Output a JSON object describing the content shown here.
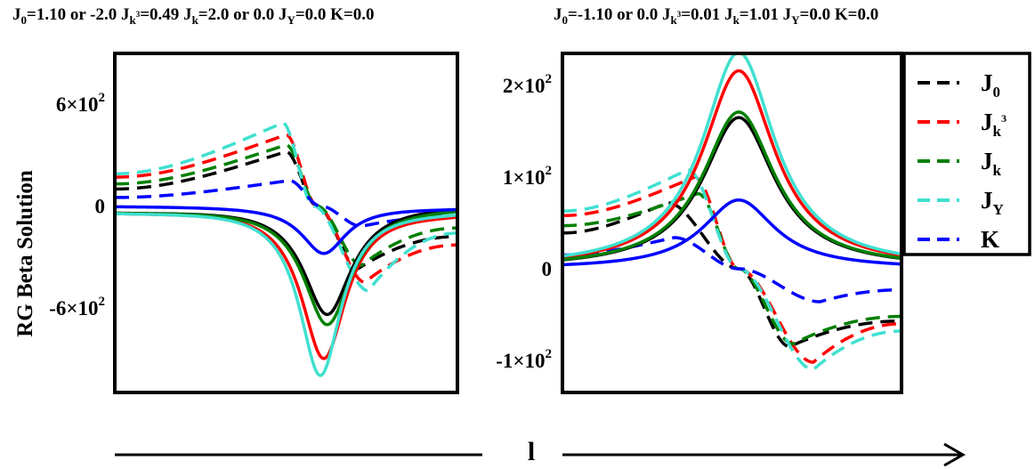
{
  "chart_data": [
    {
      "type": "line",
      "title": "J_0=1.10 or -2.0 J_k³=0.49 J_k=2.0 or 0.0 J_Y=0.0 K=0.0",
      "title_parts": {
        "j0": "J",
        "j0_sub": "0",
        "j0_val": "=1.10 or -2.0 J",
        "jk3_sub": "k",
        "jk3_sup": "3",
        "jk3_val": "=0.49 J",
        "jk_sub": "k",
        "jk_val": "=2.0 or 0.0 J",
        "jy_sub": "Y",
        "jy_val": "=0.0 K=0.0"
      },
      "ylabel": "RG Beta Solution",
      "ylim": [
        -1100,
        900
      ],
      "x_range": [
        0,
        1
      ],
      "yticks": [
        {
          "value": 600,
          "mant": "6×10",
          "exp": "2"
        },
        {
          "value": 0,
          "mant": "0",
          "exp": ""
        },
        {
          "value": -600,
          "mant": "-6×10",
          "exp": "2"
        }
      ],
      "series": [
        {
          "name": "J0 (solid)",
          "color": "#000000",
          "style": "solid",
          "type": "dip",
          "base": -30,
          "amp": -640,
          "center": 0.62,
          "width": 0.085,
          "tail": 10
        },
        {
          "name": "Jk3 (solid)",
          "color": "#ff0000",
          "style": "solid",
          "type": "dip",
          "base": -30,
          "amp": -900,
          "center": 0.61,
          "width": 0.08,
          "tail": -30
        },
        {
          "name": "Jk (solid)",
          "color": "#008000",
          "style": "solid",
          "type": "dip",
          "base": -30,
          "amp": -700,
          "center": 0.62,
          "width": 0.085,
          "tail": 0
        },
        {
          "name": "JY (solid)",
          "color": "#40e0d0",
          "style": "solid",
          "type": "dip",
          "base": -30,
          "amp": -1000,
          "center": 0.6,
          "width": 0.075,
          "tail": -20
        },
        {
          "name": "K (solid)",
          "color": "#0000ff",
          "style": "solid",
          "type": "dip",
          "base": 0,
          "amp": -280,
          "center": 0.61,
          "width": 0.08,
          "tail": -10
        },
        {
          "name": "J0 (dashed)",
          "color": "#000000",
          "style": "dashed",
          "type": "wave",
          "y_start": 100,
          "y_peak": 320,
          "x_peak": 0.5,
          "x_zero": 0.59,
          "y_trough": -370,
          "x_trough": 0.71,
          "y_end": -180
        },
        {
          "name": "Jk3 (dashed)",
          "color": "#ff0000",
          "style": "dashed",
          "type": "wave",
          "y_start": 170,
          "y_peak": 420,
          "x_peak": 0.5,
          "x_zero": 0.59,
          "y_trough": -450,
          "x_trough": 0.73,
          "y_end": -230
        },
        {
          "name": "Jk (dashed)",
          "color": "#008000",
          "style": "dashed",
          "type": "wave",
          "y_start": 130,
          "y_peak": 360,
          "x_peak": 0.5,
          "x_zero": 0.59,
          "y_trough": -350,
          "x_trough": 0.72,
          "y_end": -130
        },
        {
          "name": "JY (dashed)",
          "color": "#40e0d0",
          "style": "dashed",
          "type": "wave",
          "y_start": 190,
          "y_peak": 490,
          "x_peak": 0.49,
          "x_zero": 0.58,
          "y_trough": -500,
          "x_trough": 0.74,
          "y_end": -160
        },
        {
          "name": "K (dashed)",
          "color": "#0000ff",
          "style": "dashed",
          "type": "wave",
          "y_start": 50,
          "y_peak": 150,
          "x_peak": 0.51,
          "x_zero": 0.6,
          "y_trough": -120,
          "x_trough": 0.72,
          "y_end": -60
        }
      ]
    },
    {
      "type": "line",
      "title": "J_0=-1.10 or 0.0 J_k³=0.01 J_k=1.01 J_Y=0.0 K=0.0",
      "title_parts": {
        "j0": "J",
        "j0_sub": "0",
        "j0_val": "=-1.10 or 0.0 J",
        "jk3_sub": "k",
        "jk3_sup": "3",
        "jk3_val": "=0.01 J",
        "jk_sub": "k",
        "jk_val": "=1.01 J",
        "jy_sub": "Y",
        "jy_val": "=0.0 K=0.0"
      },
      "ylim": [
        -135,
        235
      ],
      "x_range": [
        0,
        1
      ],
      "yticks": [
        {
          "value": 200,
          "mant": "2×10",
          "exp": "2"
        },
        {
          "value": 100,
          "mant": "1×10",
          "exp": "2"
        },
        {
          "value": 0,
          "mant": "0",
          "exp": ""
        },
        {
          "value": -100,
          "mant": "-1×10",
          "exp": "2"
        }
      ],
      "series": [
        {
          "name": "J0 (solid)",
          "color": "#000000",
          "style": "solid",
          "type": "peak",
          "base": 0,
          "amp": 165,
          "center": 0.52,
          "width": 0.13
        },
        {
          "name": "Jk3 (solid)",
          "color": "#ff0000",
          "style": "solid",
          "type": "peak",
          "base": 0,
          "amp": 216,
          "center": 0.52,
          "width": 0.13
        },
        {
          "name": "Jk (solid)",
          "color": "#008000",
          "style": "solid",
          "type": "peak",
          "base": 0,
          "amp": 171,
          "center": 0.52,
          "width": 0.13
        },
        {
          "name": "JY (solid)",
          "color": "#40e0d0",
          "style": "solid",
          "type": "peak",
          "base": 0,
          "amp": 236,
          "center": 0.52,
          "width": 0.13
        },
        {
          "name": "K (solid)",
          "color": "#0000ff",
          "style": "solid",
          "type": "peak",
          "base": 0,
          "amp": 75,
          "center": 0.52,
          "width": 0.13
        },
        {
          "name": "J0 (dashed)",
          "color": "#000000",
          "style": "dashed",
          "type": "wave",
          "y_start": 39,
          "y_peak": 72,
          "x_peak": 0.31,
          "x_zero": 0.52,
          "y_trough": -85,
          "x_trough": 0.67,
          "y_end": -57
        },
        {
          "name": "Jk3 (dashed)",
          "color": "#ff0000",
          "style": "dashed",
          "type": "wave",
          "y_start": 58,
          "y_peak": 100,
          "x_peak": 0.39,
          "x_zero": 0.52,
          "y_trough": -102,
          "x_trough": 0.74,
          "y_end": -60
        },
        {
          "name": "Jk (dashed)",
          "color": "#008000",
          "style": "dashed",
          "type": "wave",
          "y_start": 47,
          "y_peak": 82,
          "x_peak": 0.4,
          "x_zero": 0.52,
          "y_trough": -82,
          "x_trough": 0.68,
          "y_end": -52
        },
        {
          "name": "JY (dashed)",
          "color": "#40e0d0",
          "style": "dashed",
          "type": "wave",
          "y_start": 63,
          "y_peak": 108,
          "x_peak": 0.37,
          "x_zero": 0.52,
          "y_trough": -110,
          "x_trough": 0.74,
          "y_end": -68
        },
        {
          "name": "K (dashed)",
          "color": "#0000ff",
          "style": "dashed",
          "type": "wave",
          "y_start": 15,
          "y_peak": 34,
          "x_peak": 0.33,
          "x_zero": 0.52,
          "y_trough": -36,
          "x_trough": 0.76,
          "y_end": -23
        }
      ]
    }
  ],
  "legend": [
    {
      "base": "J",
      "sub": "0",
      "sup": "",
      "color": "#000000"
    },
    {
      "base": "J",
      "sub": "k",
      "sup": "3",
      "color": "#ff0000"
    },
    {
      "base": "J",
      "sub": "k",
      "sup": "",
      "color": "#008000"
    },
    {
      "base": "J",
      "sub": "Y",
      "sup": "",
      "color": "#40e0d0"
    },
    {
      "base": "K",
      "sub": "",
      "sup": "",
      "color": "#0000ff"
    }
  ],
  "x_axis_label": "l"
}
